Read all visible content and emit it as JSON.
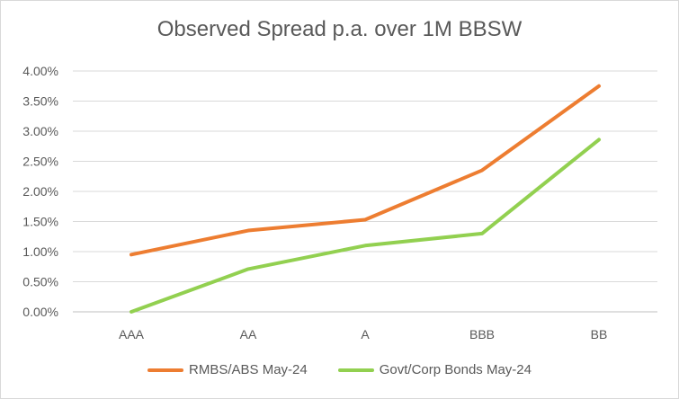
{
  "chart_data": {
    "type": "line",
    "title": "Observed Spread p.a. over 1M BBSW",
    "xlabel": "",
    "ylabel": "",
    "categories": [
      "AAA",
      "AA",
      "A",
      "BBB",
      "BB"
    ],
    "ylim": [
      0,
      4
    ],
    "yticks": [
      "0.00%",
      "0.50%",
      "1.00%",
      "1.50%",
      "2.00%",
      "2.50%",
      "3.00%",
      "3.50%",
      "4.00%"
    ],
    "grid": true,
    "legend_position": "bottom",
    "series": [
      {
        "name": "RMBS/ABS May-24",
        "color": "#ed7d31",
        "values": [
          0.95,
          1.35,
          1.53,
          2.35,
          3.75
        ]
      },
      {
        "name": "Govt/Corp Bonds May-24",
        "color": "#92d050",
        "values": [
          0.0,
          0.71,
          1.1,
          1.3,
          2.86
        ]
      }
    ]
  }
}
